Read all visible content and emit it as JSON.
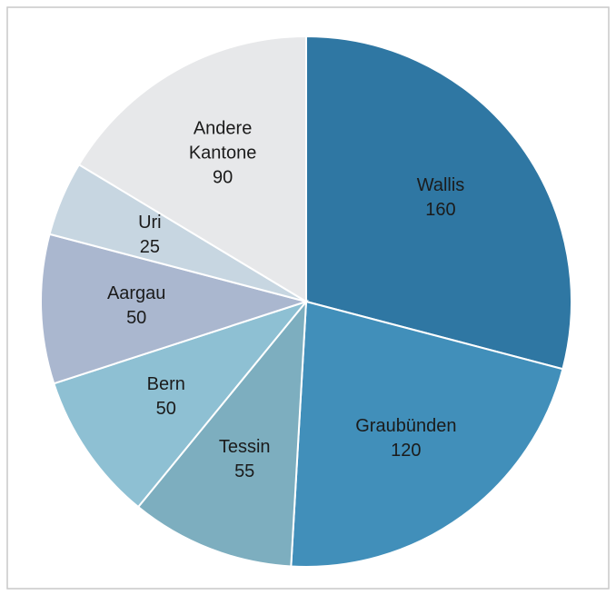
{
  "chart_data": {
    "type": "pie",
    "categories": [
      "Wallis",
      "Graubünden",
      "Tessin",
      "Bern",
      "Aargau",
      "Uri",
      "Andere Kantone"
    ],
    "values": [
      160,
      120,
      55,
      50,
      50,
      25,
      90
    ],
    "colors": [
      "#2f77a3",
      "#418fba",
      "#7daebf",
      "#8ec0d3",
      "#aab7cf",
      "#c7d6e1",
      "#e7e8ea"
    ]
  }
}
